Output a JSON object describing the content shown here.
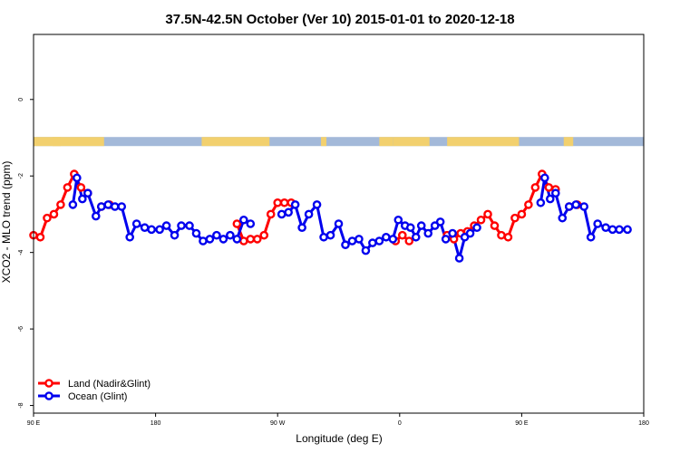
{
  "chart_data": {
    "type": "line",
    "title": "37.5N-42.5N October (Ver 10)   2015-01-01 to 2020-12-18",
    "xlabel": "Longitude (deg E)",
    "ylabel": "XCO2 - MLO trend (ppm)",
    "xlim": [
      90,
      540
    ],
    "ylim": [
      -8.2,
      1.7
    ],
    "x_ticks": [
      {
        "value": 90,
        "label": "90 E"
      },
      {
        "value": 180,
        "label": "180"
      },
      {
        "value": 270,
        "label": "90 W"
      },
      {
        "value": 360,
        "label": "0"
      },
      {
        "value": 450,
        "label": "90 E"
      },
      {
        "value": 540,
        "label": "180"
      }
    ],
    "y_ticks": [
      {
        "value": 0,
        "label": "0"
      },
      {
        "value": -2,
        "label": "-2"
      },
      {
        "value": -4,
        "label": "-4"
      },
      {
        "value": -6,
        "label": "-6"
      },
      {
        "value": -8,
        "label": "-8"
      }
    ],
    "land_ocean_band": {
      "y_center": -1.1,
      "land_color": "#f2d06e",
      "ocean_color": "#a3b9d9",
      "land_segments": [
        [
          90,
          142
        ],
        [
          104,
          110
        ],
        [
          214,
          264
        ],
        [
          302,
          306
        ],
        [
          345,
          355
        ],
        [
          355,
          382
        ],
        [
          395,
          448
        ],
        [
          481,
          488
        ]
      ]
    },
    "legend": {
      "position": "bottom-left",
      "entries": [
        {
          "label": "Land (Nadir&Glint)",
          "color": "#ff0000"
        },
        {
          "label": "Ocean (Glint)",
          "color": "#0000ee"
        }
      ]
    },
    "series": [
      {
        "name": "Land (Nadir&Glint)",
        "color": "#ff0000",
        "segments": [
          [
            [
              90,
              -3.55
            ],
            [
              95,
              -3.6
            ],
            [
              100,
              -3.1
            ],
            [
              105,
              -3.0
            ],
            [
              110,
              -2.75
            ],
            [
              115,
              -2.3
            ],
            [
              120,
              -1.95
            ],
            [
              125,
              -2.3
            ],
            [
              130,
              -2.45
            ]
          ],
          [
            [
              140,
              -2.8
            ],
            [
              146,
              -2.75
            ]
          ],
          [
            [
              240,
              -3.25
            ],
            [
              245,
              -3.7
            ],
            [
              250,
              -3.65
            ],
            [
              255,
              -3.65
            ],
            [
              260,
              -3.55
            ],
            [
              265,
              -3.0
            ],
            [
              270,
              -2.7
            ],
            [
              275,
              -2.7
            ],
            [
              280,
              -2.7
            ]
          ],
          [
            [
              357,
              -3.7
            ],
            [
              362,
              -3.55
            ],
            [
              367,
              -3.7
            ]
          ],
          [
            [
              395,
              -3.55
            ],
            [
              400,
              -3.65
            ],
            [
              405,
              -3.5
            ],
            [
              410,
              -3.45
            ],
            [
              415,
              -3.3
            ],
            [
              420,
              -3.15
            ],
            [
              425,
              -3.0
            ],
            [
              430,
              -3.3
            ],
            [
              435,
              -3.55
            ],
            [
              440,
              -3.6
            ],
            [
              445,
              -3.1
            ],
            [
              450,
              -3.0
            ],
            [
              455,
              -2.75
            ],
            [
              460,
              -2.3
            ],
            [
              465,
              -1.95
            ],
            [
              470,
              -2.3
            ],
            [
              475,
              -2.35
            ]
          ],
          [
            [
              485,
              -2.8
            ],
            [
              491,
              -2.75
            ]
          ]
        ]
      },
      {
        "name": "Ocean (Glint)",
        "color": "#0000ee",
        "segments": [
          [
            [
              119,
              -2.75
            ],
            [
              122,
              -2.05
            ],
            [
              126,
              -2.6
            ],
            [
              130,
              -2.45
            ],
            [
              136,
              -3.05
            ],
            [
              140,
              -2.8
            ],
            [
              145,
              -2.75
            ],
            [
              150,
              -2.8
            ],
            [
              155,
              -2.8
            ],
            [
              161,
              -3.6
            ],
            [
              166,
              -3.25
            ],
            [
              172,
              -3.35
            ],
            [
              177,
              -3.4
            ],
            [
              183,
              -3.4
            ],
            [
              188,
              -3.3
            ],
            [
              194,
              -3.55
            ],
            [
              199,
              -3.3
            ],
            [
              205,
              -3.3
            ],
            [
              210,
              -3.5
            ],
            [
              215,
              -3.7
            ],
            [
              220,
              -3.65
            ],
            [
              225,
              -3.55
            ],
            [
              230,
              -3.65
            ],
            [
              235,
              -3.55
            ],
            [
              240,
              -3.65
            ],
            [
              245,
              -3.15
            ],
            [
              250,
              -3.25
            ]
          ],
          [
            [
              273,
              -3.0
            ],
            [
              278,
              -2.95
            ],
            [
              283,
              -2.75
            ],
            [
              288,
              -3.35
            ],
            [
              293,
              -3.0
            ],
            [
              299,
              -2.75
            ],
            [
              304,
              -3.6
            ],
            [
              309,
              -3.55
            ],
            [
              315,
              -3.25
            ],
            [
              320,
              -3.8
            ],
            [
              325,
              -3.7
            ],
            [
              330,
              -3.65
            ],
            [
              335,
              -3.95
            ],
            [
              340,
              -3.75
            ],
            [
              345,
              -3.7
            ],
            [
              350,
              -3.6
            ],
            [
              355,
              -3.65
            ],
            [
              359,
              -3.15
            ],
            [
              364,
              -3.3
            ],
            [
              368,
              -3.35
            ],
            [
              372,
              -3.6
            ],
            [
              376,
              -3.3
            ],
            [
              381,
              -3.5
            ],
            [
              386,
              -3.3
            ],
            [
              390,
              -3.2
            ],
            [
              394,
              -3.65
            ],
            [
              399,
              -3.5
            ],
            [
              404,
              -4.15
            ],
            [
              408,
              -3.6
            ],
            [
              412,
              -3.5
            ],
            [
              417,
              -3.35
            ]
          ],
          [
            [
              464,
              -2.7
            ],
            [
              467,
              -2.05
            ],
            [
              471,
              -2.6
            ],
            [
              475,
              -2.45
            ],
            [
              480,
              -3.1
            ],
            [
              485,
              -2.8
            ],
            [
              490,
              -2.75
            ],
            [
              496,
              -2.8
            ],
            [
              501,
              -3.6
            ],
            [
              506,
              -3.25
            ],
            [
              512,
              -3.35
            ],
            [
              517,
              -3.4
            ],
            [
              522,
              -3.4
            ],
            [
              528,
              -3.4
            ]
          ]
        ]
      }
    ]
  }
}
